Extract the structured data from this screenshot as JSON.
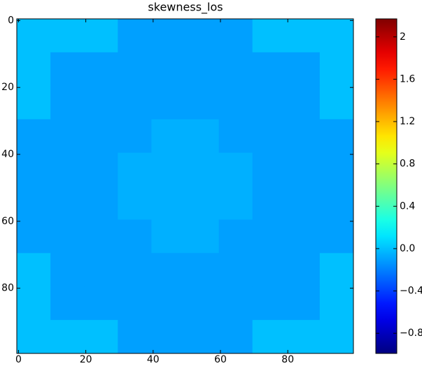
{
  "chart_data": {
    "type": "heatmap",
    "title": "skewness_los",
    "colormap": "jet",
    "xlim": [
      -0.5,
      99.5
    ],
    "ylim": [
      -0.5,
      99.5
    ],
    "xticks": [
      0,
      20,
      40,
      60,
      80
    ],
    "yticks": [
      0,
      20,
      40,
      60,
      80
    ],
    "values": [
      [
        0,
        0,
        0,
        -0.1,
        -0.1,
        -0.1,
        -0.1,
        0,
        0,
        0
      ],
      [
        0,
        -0.1,
        -0.1,
        -0.1,
        -0.1,
        -0.1,
        -0.1,
        -0.1,
        -0.1,
        0
      ],
      [
        0,
        -0.1,
        -0.1,
        -0.1,
        -0.1,
        -0.1,
        -0.1,
        -0.1,
        -0.1,
        0
      ],
      [
        -0.1,
        -0.1,
        -0.1,
        -0.1,
        -0.05,
        -0.05,
        -0.1,
        -0.1,
        -0.1,
        -0.1
      ],
      [
        -0.1,
        -0.1,
        -0.1,
        -0.05,
        -0.05,
        -0.05,
        -0.05,
        -0.1,
        -0.1,
        -0.1
      ],
      [
        -0.1,
        -0.1,
        -0.1,
        -0.05,
        -0.05,
        -0.05,
        -0.05,
        -0.1,
        -0.1,
        -0.1
      ],
      [
        -0.1,
        -0.1,
        -0.1,
        -0.1,
        -0.05,
        -0.05,
        -0.1,
        -0.1,
        -0.1,
        -0.1
      ],
      [
        0,
        -0.1,
        -0.1,
        -0.1,
        -0.1,
        -0.1,
        -0.1,
        -0.1,
        -0.1,
        0
      ],
      [
        0,
        -0.1,
        -0.1,
        -0.1,
        -0.1,
        -0.1,
        -0.1,
        -0.1,
        -0.1,
        0
      ],
      [
        0,
        0,
        0,
        -0.1,
        -0.1,
        -0.1,
        -0.1,
        0,
        0,
        0
      ]
    ],
    "colorbar": {
      "lim": [
        -0.99,
        2.17
      ],
      "ticks": [
        {
          "value": -0.8,
          "label": "−0.8"
        },
        {
          "value": -0.4,
          "label": "−0.4"
        },
        {
          "value": 0,
          "label": "0.0"
        },
        0.4,
        0.8,
        1.2,
        1.6,
        2.0
      ]
    }
  }
}
